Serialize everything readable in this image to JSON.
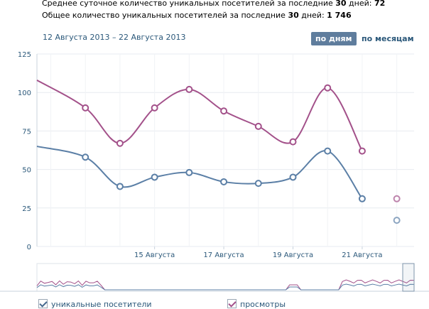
{
  "stats": {
    "avg_prefix": "Среднее суточное количество уникальных посетителей за последние ",
    "avg_days": "30",
    "avg_suffix": " дней: ",
    "avg_value": "72",
    "total_prefix": "Общее количество уникальных посетителей за последние ",
    "total_days": "30",
    "total_suffix": " дней: ",
    "total_value": "1 746"
  },
  "date_range": "12 Августа 2013 – 22 Августа 2013",
  "period_buttons": {
    "days": "по дням",
    "months": "по месяцам"
  },
  "colors": {
    "visitors": "#5b7fa6",
    "views": "#a3518a",
    "grid": "#e7ebf0",
    "axis_text": "#2b587a",
    "active_button": "#5f7d9d"
  },
  "chart_data": {
    "type": "line",
    "ylim": [
      0,
      125
    ],
    "yticks": [
      0,
      25,
      50,
      75,
      100,
      125
    ],
    "x": [
      12,
      13,
      14,
      15,
      16,
      17,
      18,
      19,
      20,
      21,
      22
    ],
    "xlim": [
      11.6,
      22.5
    ],
    "xticks": [
      {
        "x": 15,
        "label": "15 Августа"
      },
      {
        "x": 17,
        "label": "17 Августа"
      },
      {
        "x": 19,
        "label": "19 Августа"
      },
      {
        "x": 21,
        "label": "21 Августа"
      }
    ],
    "series": [
      {
        "name": "просмотры",
        "key": "views",
        "values": [
          90,
          67,
          90,
          102,
          88,
          78,
          68,
          103,
          62,
          31
        ],
        "x": [
          13,
          14,
          15,
          16,
          17,
          18,
          19,
          20,
          21,
          22
        ],
        "start_value": 108
      },
      {
        "name": "уникальные посетители",
        "key": "visitors",
        "values": [
          58,
          39,
          45,
          48,
          42,
          41,
          45,
          62,
          31,
          17
        ],
        "x": [
          13,
          14,
          15,
          16,
          17,
          18,
          19,
          20,
          21,
          22
        ],
        "start_value": 65
      }
    ],
    "grid": true
  },
  "legend": {
    "visitors": "уникальные посетители",
    "views": "просмотры"
  }
}
